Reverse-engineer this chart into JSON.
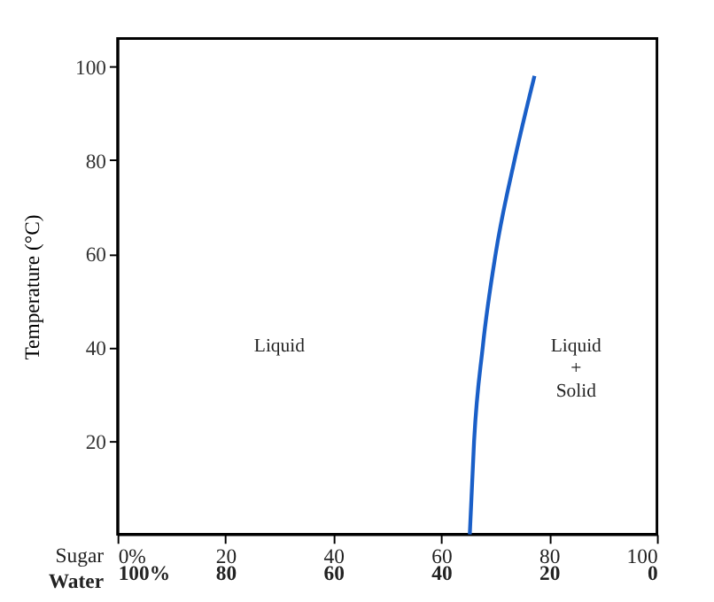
{
  "chart_data": {
    "type": "line",
    "xlabel": "Sugar",
    "x2label": "Water",
    "ylabel": "Temperature (°C)",
    "x": [
      65.3,
      66.1,
      67.7,
      70.1,
      73.6,
      77.3
    ],
    "series": [
      {
        "color": "#1a5fc8",
        "values": [
          0,
          20,
          40,
          60,
          80,
          98
        ]
      }
    ],
    "xlim": [
      0,
      100
    ],
    "xticks": [
      {
        "value": 0,
        "label": "0%"
      },
      20,
      40,
      60,
      80,
      100
    ],
    "x2lim": [
      100,
      0
    ],
    "x2ticks": [
      {
        "value": 100,
        "label": "100%"
      },
      80,
      60,
      40,
      20,
      0
    ],
    "ylim": [
      0,
      106
    ],
    "yticks": [
      20,
      40,
      60,
      80,
      100
    ],
    "annotations": [
      "Liquid",
      "Liquid\n+\nSolid"
    ],
    "grid": false,
    "marker": "none",
    "line_style": "solid"
  }
}
